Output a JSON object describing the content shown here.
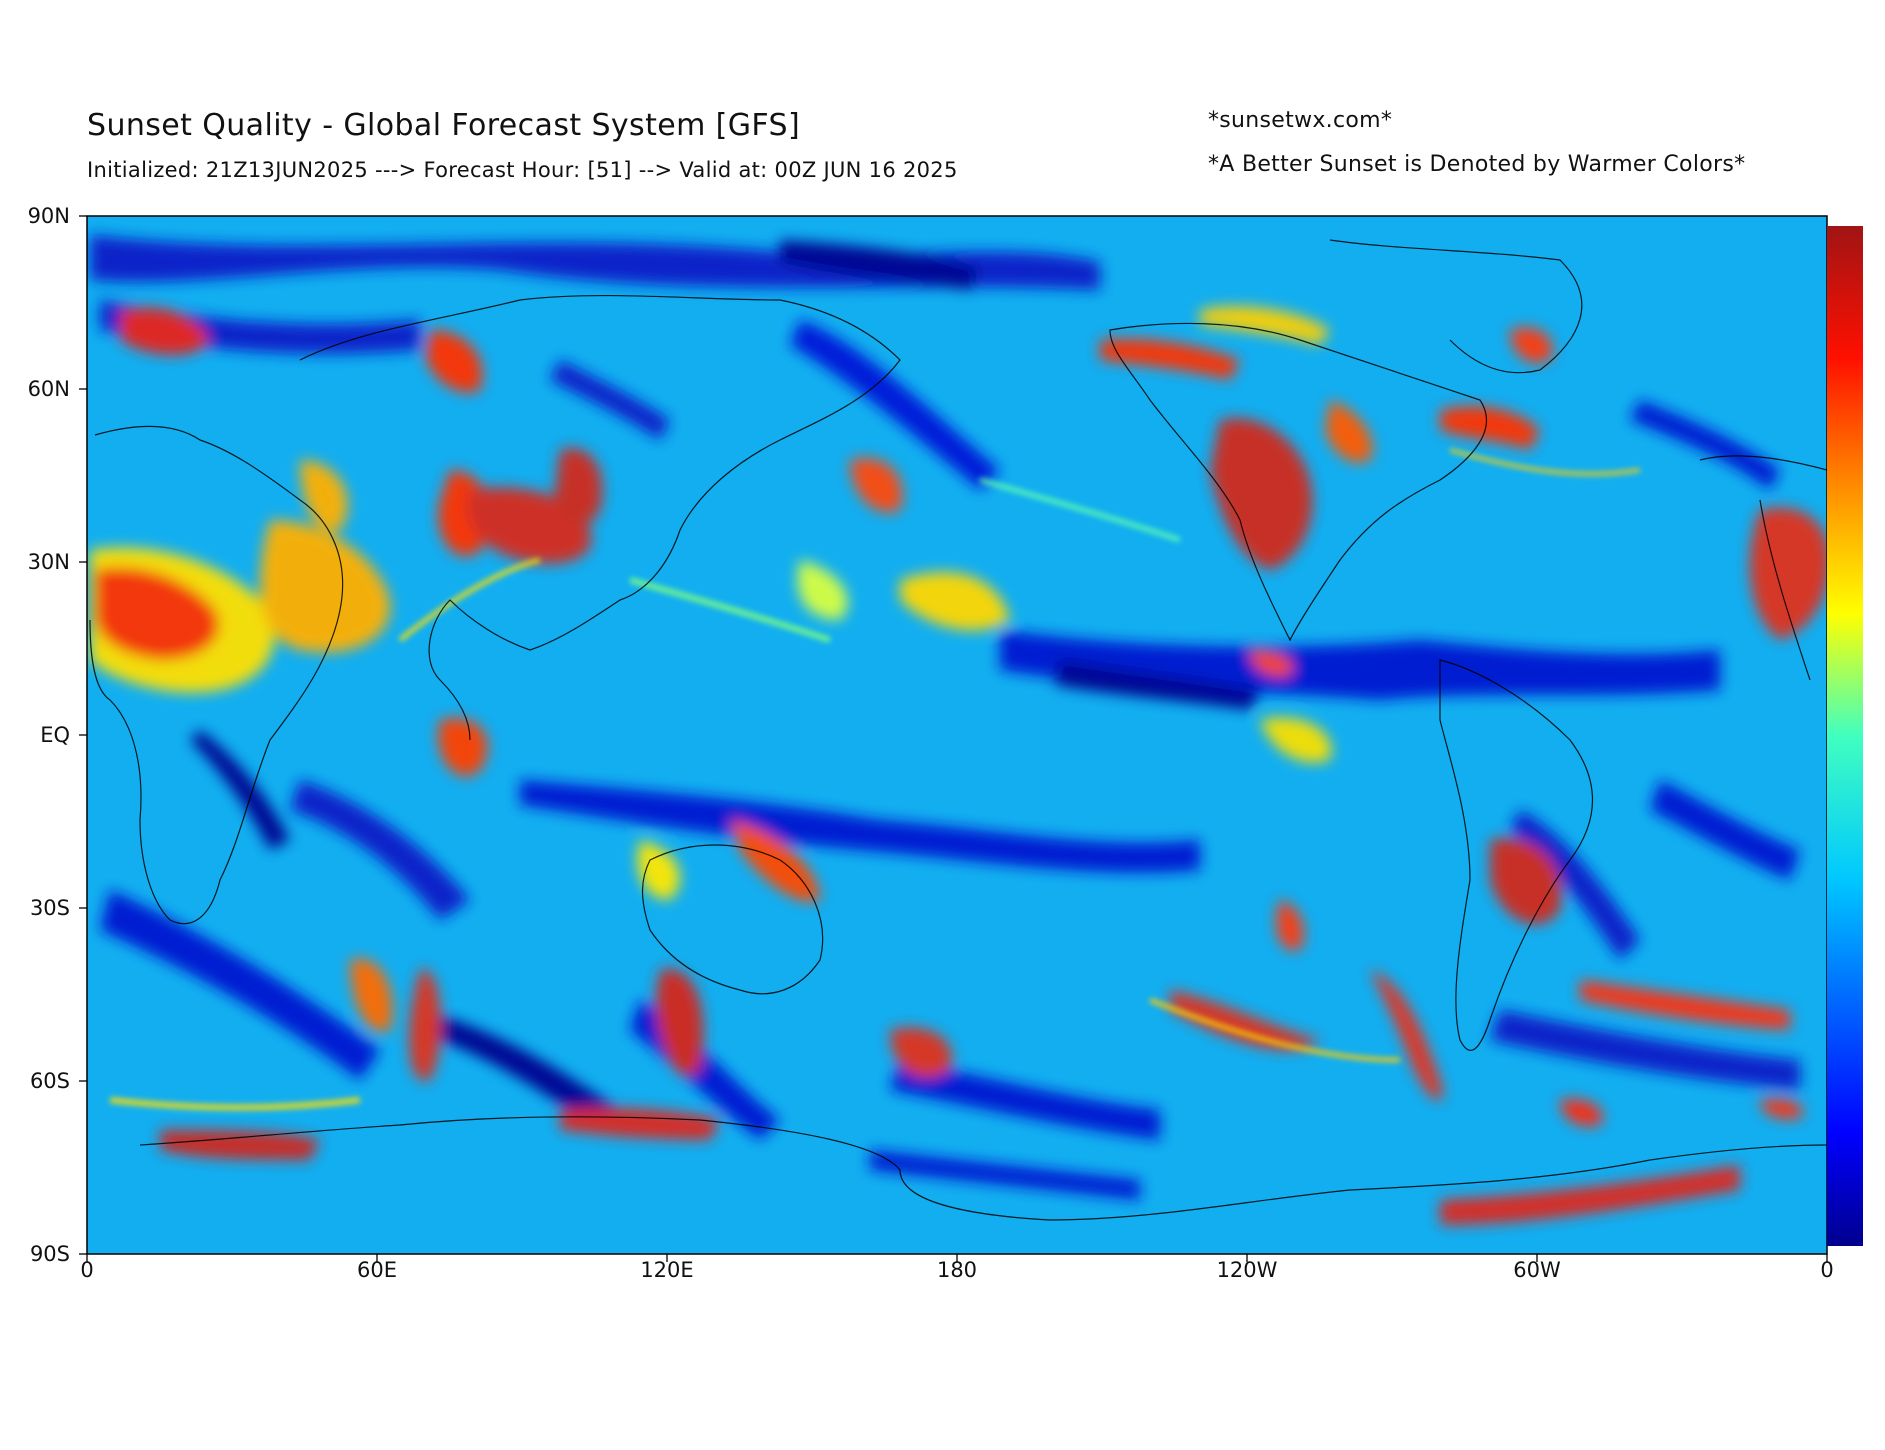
{
  "header": {
    "title": "Sunset Quality - Global Forecast System [GFS]",
    "subtitle": "Initialized: 21Z13JUN2025 ---> Forecast Hour: [51] --> Valid at: 00Z JUN 16 2025",
    "site": "*sunsetwx.com*",
    "note": "*A Better Sunset is Denoted by Warmer Colors*"
  },
  "map": {
    "projection": "equirectangular",
    "lat_tick_labels": [
      "90N",
      "60N",
      "30N",
      "EQ",
      "30S",
      "60S",
      "90S"
    ],
    "lon_tick_labels": [
      "0",
      "60E",
      "120E",
      "180",
      "120W",
      "60W",
      "0"
    ],
    "colormap": "jet",
    "colors": {
      "jet_low": "#00008f",
      "jet_mid": "#00b4ff",
      "jet_high": "#a01414",
      "coastline": "#000000"
    }
  }
}
